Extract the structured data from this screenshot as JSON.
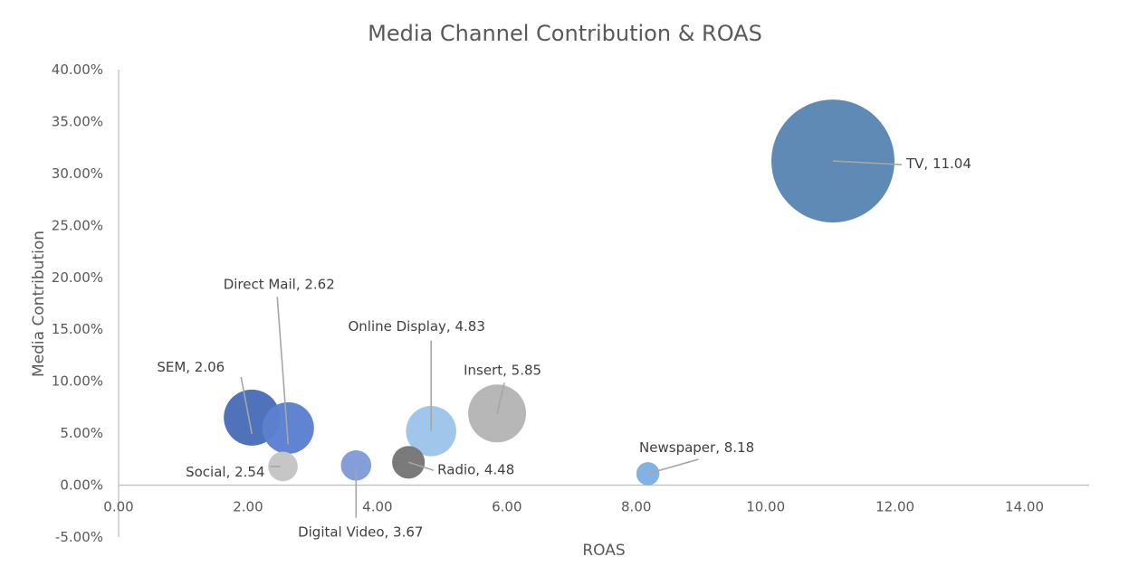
{
  "chart_data": {
    "type": "bubble",
    "title": "Media Channel Contribution & ROAS",
    "xlabel": "ROAS",
    "ylabel": "Media Contribution",
    "xlim": [
      0,
      15
    ],
    "ylim": [
      -0.05,
      0.4
    ],
    "x_ticks": [
      "0.00",
      "2.00",
      "4.00",
      "6.00",
      "8.00",
      "10.00",
      "12.00",
      "14.00"
    ],
    "y_ticks": [
      "-5.00%",
      "0.00%",
      "5.00%",
      "10.00%",
      "15.00%",
      "20.00%",
      "25.00%",
      "30.00%",
      "35.00%",
      "40.00%"
    ],
    "points": [
      {
        "name": "SEM",
        "x": 2.06,
        "y": 0.065,
        "size": 0.065,
        "color": "#4a6db8",
        "label": "SEM, 2.06"
      },
      {
        "name": "Direct Mail",
        "x": 2.62,
        "y": 0.055,
        "size": 0.055,
        "color": "#5b80d0",
        "label": "Direct Mail, 2.62"
      },
      {
        "name": "Social",
        "x": 2.54,
        "y": 0.018,
        "size": 0.018,
        "color": "#c4c4c4",
        "label": "Social, 2.54"
      },
      {
        "name": "Digital Video",
        "x": 3.67,
        "y": 0.019,
        "size": 0.019,
        "color": "#7f9bd8",
        "label": "Digital Video, 3.67"
      },
      {
        "name": "Radio",
        "x": 4.48,
        "y": 0.022,
        "size": 0.022,
        "color": "#767676",
        "label": "Radio, 4.48"
      },
      {
        "name": "Online Display",
        "x": 4.83,
        "y": 0.052,
        "size": 0.052,
        "color": "#9ec4ea",
        "label": "Online Display, 4.83"
      },
      {
        "name": "Insert",
        "x": 5.85,
        "y": 0.069,
        "size": 0.069,
        "color": "#b5b5b5",
        "label": "Insert, 5.85"
      },
      {
        "name": "Newspaper",
        "x": 8.18,
        "y": 0.011,
        "size": 0.011,
        "color": "#7eaee2",
        "label": "Newspaper, 8.18"
      },
      {
        "name": "TV",
        "x": 11.04,
        "y": 0.312,
        "size": 0.312,
        "color": "#5a86b4",
        "label": "TV, 11.04"
      }
    ]
  }
}
